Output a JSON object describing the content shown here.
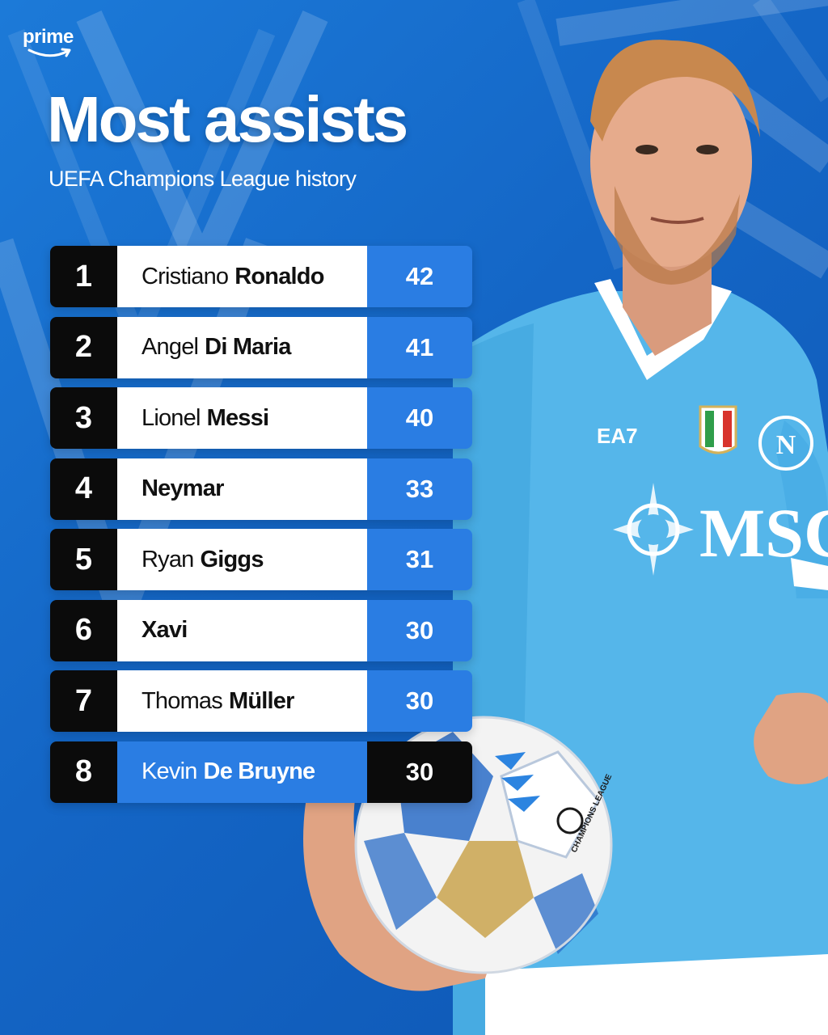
{
  "brand": {
    "name": "prime"
  },
  "header": {
    "title": "Most assists",
    "subtitle": "UEFA Champions League history"
  },
  "colors": {
    "accent": "#2a7de3",
    "dark": "#0b0b0b",
    "background": "#1466c6"
  },
  "jersey": {
    "sponsor": "MSC",
    "kit_maker": "EA7",
    "badge": "N",
    "ball_text": "CHAMPIONS LEAGUE"
  },
  "rows": [
    {
      "rank": "1",
      "first": "Cristiano",
      "last": "Ronaldo",
      "assists": "42",
      "highlight": false
    },
    {
      "rank": "2",
      "first": "Angel",
      "last": "Di Maria",
      "assists": "41",
      "highlight": false
    },
    {
      "rank": "3",
      "first": "Lionel",
      "last": "Messi",
      "assists": "40",
      "highlight": false
    },
    {
      "rank": "4",
      "first": "",
      "last": "Neymar",
      "assists": "33",
      "highlight": false
    },
    {
      "rank": "5",
      "first": "Ryan",
      "last": "Giggs",
      "assists": "31",
      "highlight": false
    },
    {
      "rank": "6",
      "first": "",
      "last": "Xavi",
      "assists": "30",
      "highlight": false
    },
    {
      "rank": "7",
      "first": "Thomas",
      "last": "Müller",
      "assists": "30",
      "highlight": false
    },
    {
      "rank": "8",
      "first": "Kevin",
      "last": "De Bruyne",
      "assists": "30",
      "highlight": true
    }
  ]
}
